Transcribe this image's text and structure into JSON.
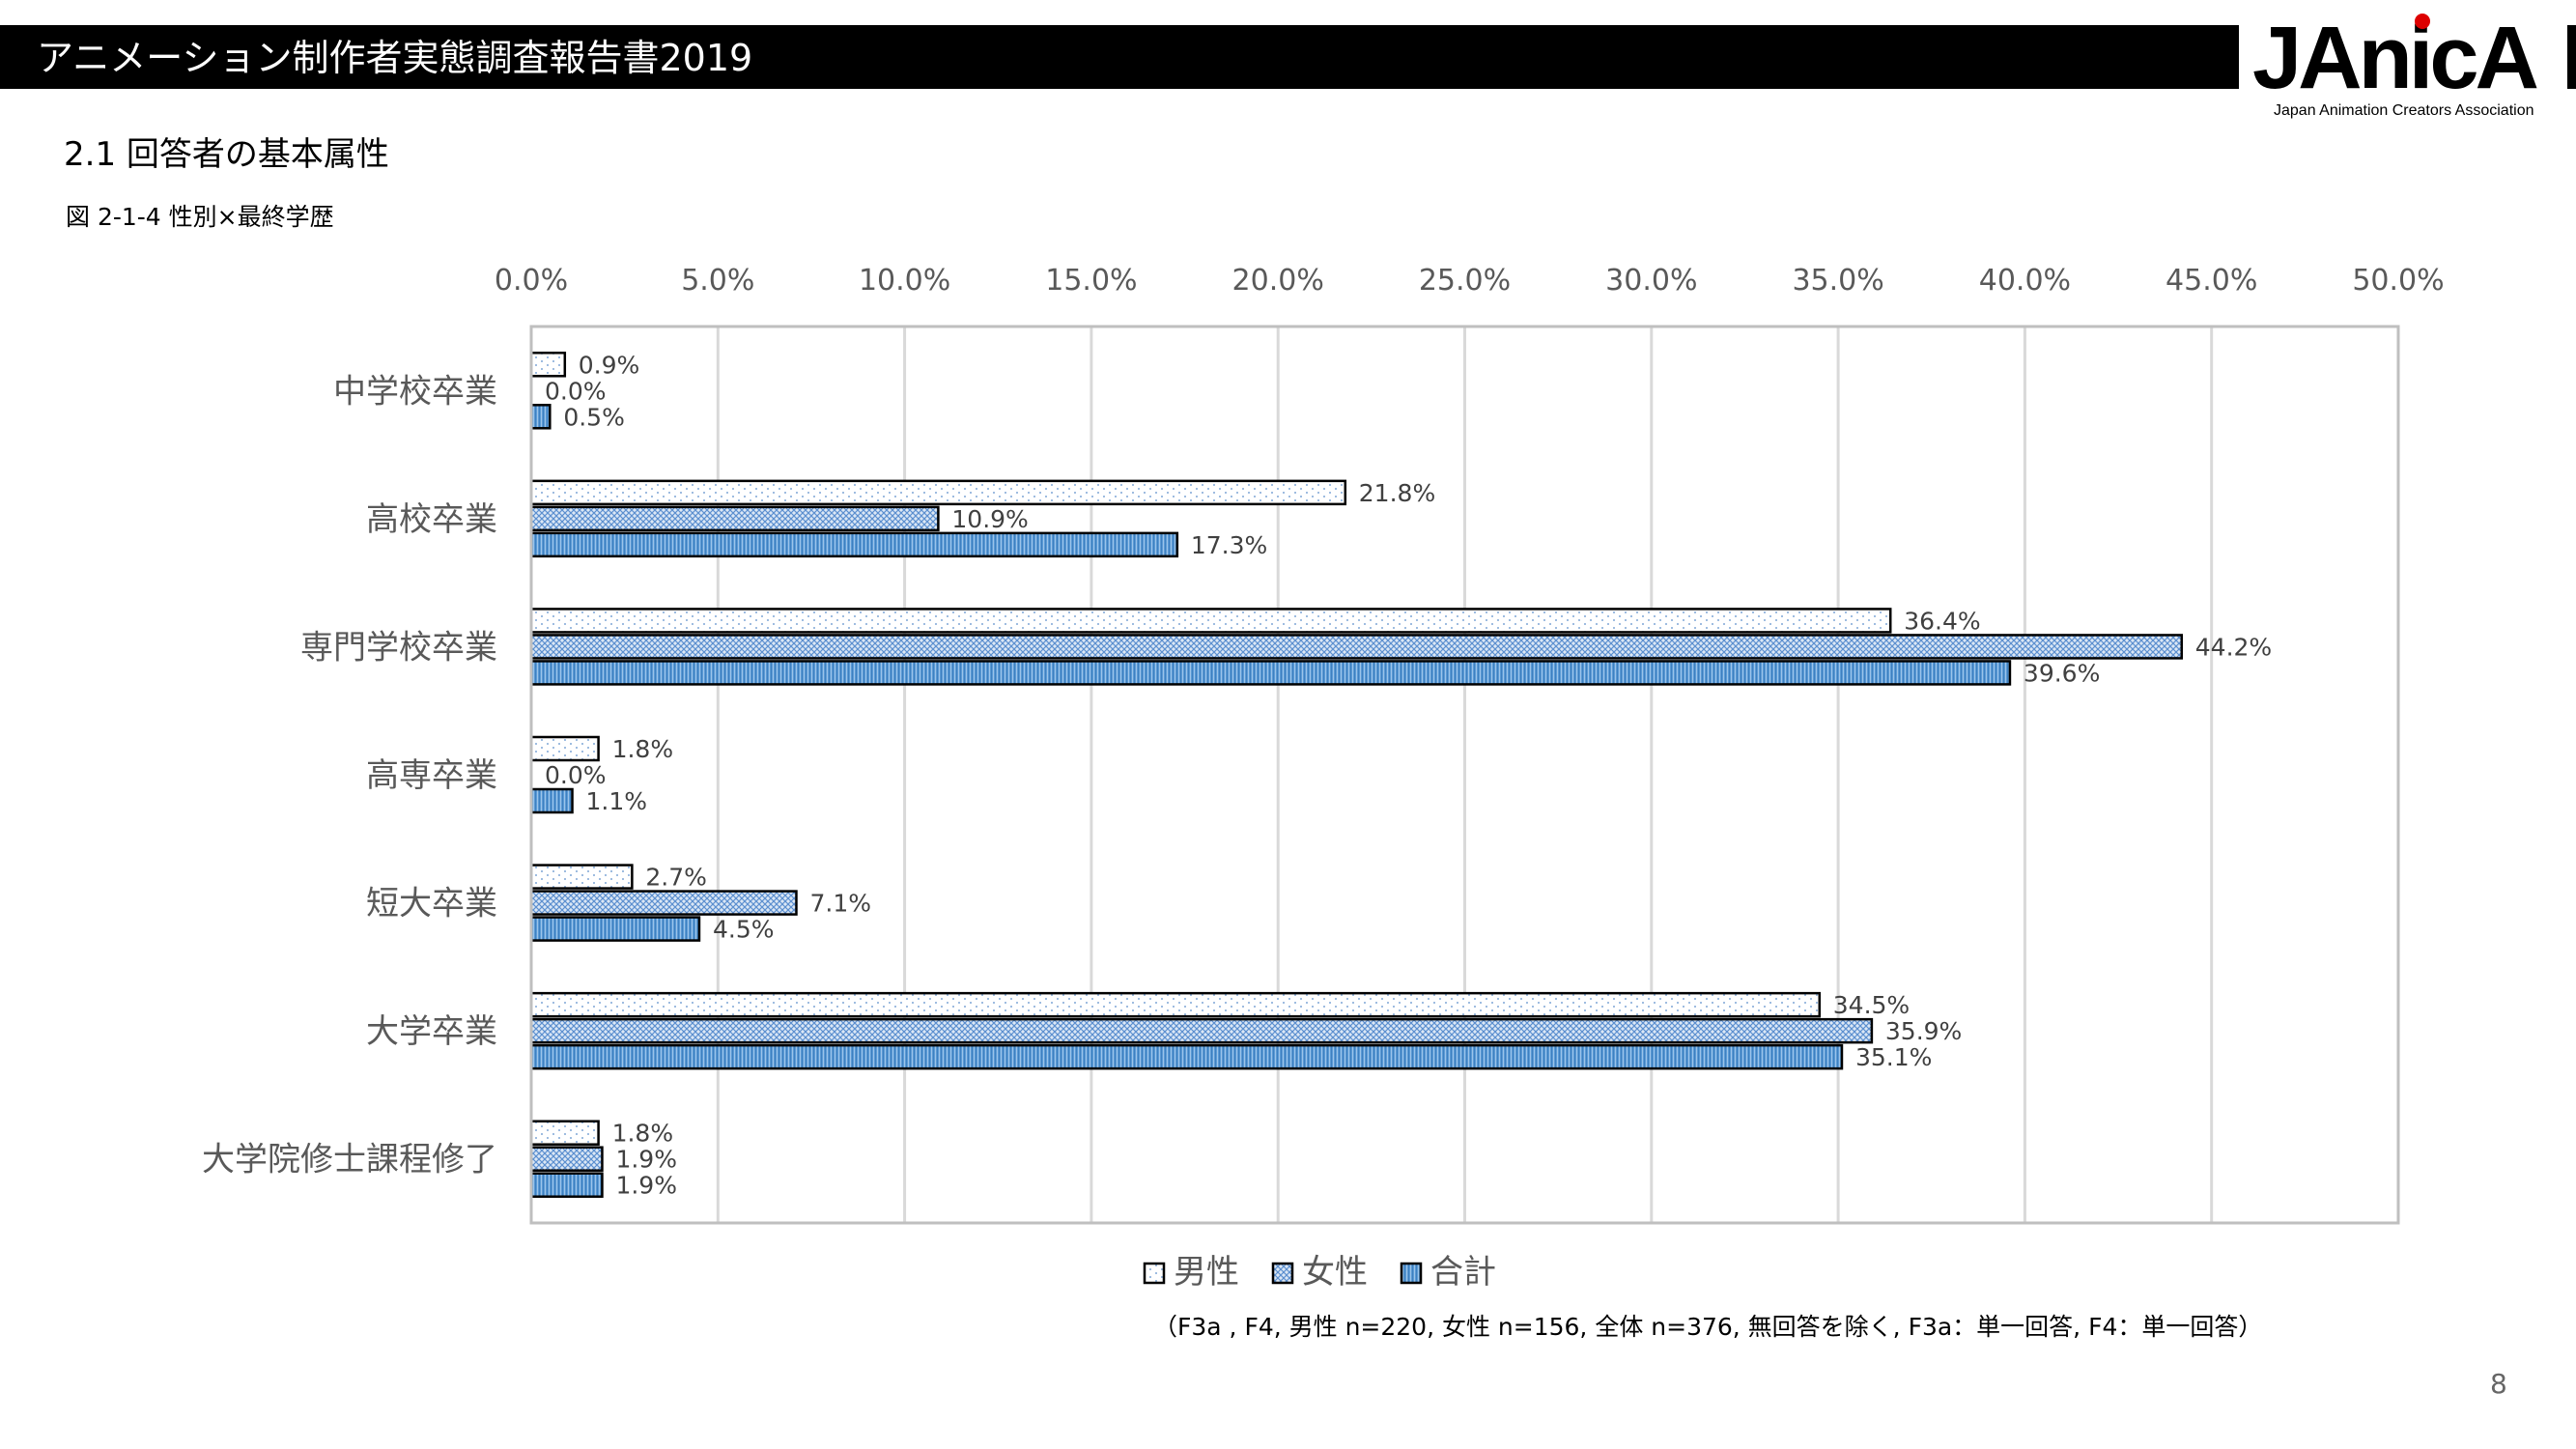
{
  "header": {
    "title": "アニメーション制作者実態調査報告書2019"
  },
  "logo": {
    "mark": "JAnicA",
    "subtitle": "Japan Animation Creators Association"
  },
  "section": {
    "title": "2.1  回答者の基本属性"
  },
  "figure": {
    "caption": "図 2-1-4  性別×最終学歴"
  },
  "footnote": "（F3a ,  F4, 男性 n=220, 女性 n=156, 全体 n=376, 無回答を除く, F3a：単一回答, F4：単一回答）",
  "page_number": "8",
  "colors": {
    "male_fill": "#ffffff",
    "female_fill": "#dbe7f5",
    "total_fill": "#5b9bd5",
    "bar_stroke": "#000000",
    "grid": "#d9d9d9",
    "plot_border": "#bfbfbf"
  },
  "chart_data": {
    "type": "bar",
    "orientation": "horizontal",
    "title": "",
    "xlabel": "",
    "ylabel": "",
    "xlim": [
      0,
      50
    ],
    "x_ticks": [
      "0.0%",
      "5.0%",
      "10.0%",
      "15.0%",
      "20.0%",
      "25.0%",
      "30.0%",
      "35.0%",
      "40.0%",
      "45.0%",
      "50.0%"
    ],
    "x_axis_position": "top",
    "grid": true,
    "legend_position": "bottom",
    "categories": [
      "中学校卒業",
      "高校卒業",
      "専門学校卒業",
      "高専卒業",
      "短大卒業",
      "大学卒業",
      "大学院修士課程修了"
    ],
    "series": [
      {
        "name": "男性",
        "pattern": "dots",
        "values": [
          0.9,
          21.8,
          36.4,
          1.8,
          2.7,
          34.5,
          1.8
        ],
        "labels": [
          "0.9%",
          "21.8%",
          "36.4%",
          "1.8%",
          "2.7%",
          "34.5%",
          "1.8%"
        ]
      },
      {
        "name": "女性",
        "pattern": "crosshatch",
        "values": [
          0.0,
          10.9,
          44.2,
          0.0,
          7.1,
          35.9,
          1.9
        ],
        "labels": [
          "0.0%",
          "10.9%",
          "44.2%",
          "0.0%",
          "7.1%",
          "35.9%",
          "1.9%"
        ]
      },
      {
        "name": "合計",
        "pattern": "blue-dense",
        "values": [
          0.5,
          17.3,
          39.6,
          1.1,
          4.5,
          35.1,
          1.9
        ],
        "labels": [
          "0.5%",
          "17.3%",
          "39.6%",
          "1.1%",
          "4.5%",
          "35.1%",
          "1.9%"
        ]
      }
    ]
  }
}
